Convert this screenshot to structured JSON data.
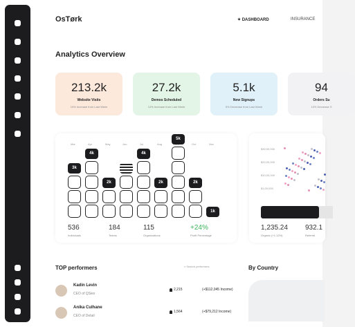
{
  "header": {
    "logo": "OsTørk",
    "nav": [
      "DASHBOARD",
      "INSURANCE"
    ]
  },
  "title": "Analytics Overview",
  "cards": [
    {
      "value": "213.2k",
      "label": "Website Visits",
      "note": "10% Increase from Last Week"
    },
    {
      "value": "27.2k",
      "label": "Demos Scheduled",
      "note": "12% Increase from Last Week"
    },
    {
      "value": "5.1k",
      "label": "New Signups",
      "note": "5% Decrease from Last Week"
    },
    {
      "value": "94",
      "label": "Orders Su",
      "note": "10% Decrease S"
    }
  ],
  "activity": {
    "months": [
      "Mar",
      "Apr",
      "May",
      "Jun",
      "Jul",
      "Aug",
      "Sep",
      "Oct",
      "Nov"
    ],
    "badges": [
      "3k",
      "4k",
      "2k",
      null,
      "4k",
      "2k",
      "5k",
      "2k",
      "1k"
    ],
    "stats": [
      {
        "value": "536",
        "label": "Individuals"
      },
      {
        "value": "184",
        "label": "Teams"
      },
      {
        "value": "115",
        "label": "Organizations"
      },
      {
        "value": "+24%",
        "label": "Profit Percentage"
      }
    ]
  },
  "traffic": {
    "axis": [
      "$30,00,000",
      "$20,00,000",
      "$10,00,000",
      "$1,00,000"
    ],
    "stats": [
      {
        "value": "1,235.24",
        "label": "Organic (+1.12%)"
      },
      {
        "value": "932.1",
        "label": "Referral"
      }
    ]
  },
  "performers": {
    "title": "TOP performers",
    "search": "Search performers",
    "rows": [
      {
        "name": "Kadin Levin",
        "role": "CEO of QSiex",
        "count": "2,215",
        "income": "(+$112,045 Income)"
      },
      {
        "name": "Anika Culhane",
        "role": "CEO of Detail",
        "count": "1,564",
        "income": "(+$79,212 Income)"
      }
    ]
  },
  "country": {
    "title": "By Country"
  }
}
